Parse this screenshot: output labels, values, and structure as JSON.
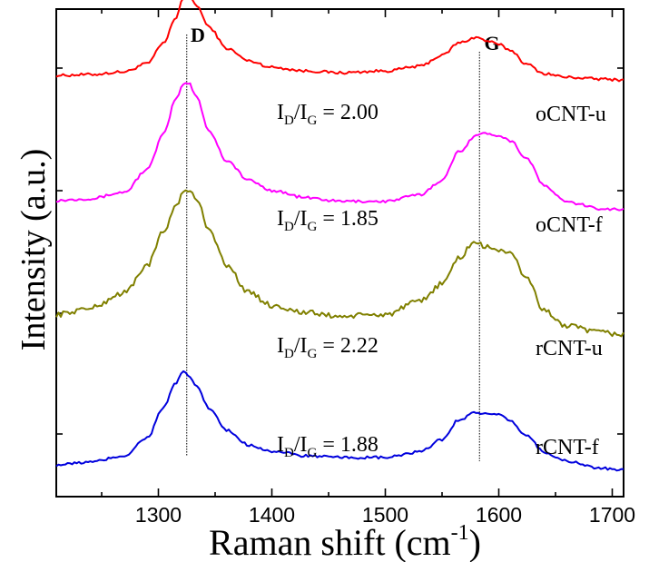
{
  "chart_data": {
    "type": "line",
    "xlabel": "Raman shift (cm-1)",
    "xlabel_main": "Raman shift (cm",
    "xlabel_sup": "-1",
    "xlabel_close": ")",
    "ylabel": "Intensity (a.u.)",
    "xlim": [
      1210,
      1710
    ],
    "ylim": [
      0,
      5
    ],
    "xticks": [
      1300,
      1400,
      1500,
      1600,
      1700
    ],
    "xtick_labels": [
      "1300",
      "1400",
      "1500",
      "1600",
      "1700"
    ],
    "yticks_unlabeled": true,
    "grid": false,
    "peak_markers": [
      {
        "label": "D",
        "x": 1325
      },
      {
        "label": "G",
        "x": 1583
      }
    ],
    "series": [
      {
        "name": "oCNT-u",
        "color": "#ff0000",
        "ratio": "2.00",
        "x": [
          1210,
          1240,
          1270,
          1290,
          1305,
          1315,
          1322,
          1327,
          1333,
          1345,
          1360,
          1380,
          1400,
          1430,
          1460,
          1500,
          1530,
          1550,
          1565,
          1580,
          1590,
          1600,
          1610,
          1625,
          1640,
          1660,
          1690,
          1710
        ],
        "y": [
          4.32,
          4.33,
          4.36,
          4.45,
          4.68,
          4.95,
          5.18,
          5.22,
          5.1,
          4.85,
          4.62,
          4.48,
          4.41,
          4.37,
          4.35,
          4.37,
          4.42,
          4.54,
          4.68,
          4.74,
          4.7,
          4.66,
          4.6,
          4.44,
          4.34,
          4.3,
          4.28,
          4.27
        ]
      },
      {
        "name": "oCNT-f",
        "color": "#ff00ff",
        "ratio": "1.85",
        "x": [
          1210,
          1240,
          1270,
          1290,
          1305,
          1315,
          1322,
          1327,
          1333,
          1345,
          1360,
          1380,
          1400,
          1430,
          1460,
          1500,
          1530,
          1550,
          1565,
          1580,
          1590,
          1600,
          1610,
          1625,
          1640,
          1660,
          1690,
          1710
        ],
        "y": [
          2.94,
          2.96,
          3.03,
          3.28,
          3.68,
          4.05,
          4.22,
          4.24,
          4.1,
          3.7,
          3.38,
          3.16,
          3.05,
          2.97,
          2.93,
          2.93,
          3.0,
          3.16,
          3.48,
          3.66,
          3.68,
          3.66,
          3.6,
          3.4,
          3.1,
          2.92,
          2.85,
          2.84
        ]
      },
      {
        "name": "rCNT-u",
        "color": "#808000",
        "ratio": "2.22",
        "x": [
          1210,
          1240,
          1270,
          1290,
          1305,
          1315,
          1322,
          1327,
          1333,
          1345,
          1360,
          1380,
          1400,
          1430,
          1460,
          1500,
          1530,
          1550,
          1565,
          1578,
          1590,
          1600,
          1610,
          1625,
          1640,
          1660,
          1690,
          1710
        ],
        "y": [
          1.68,
          1.75,
          1.92,
          2.22,
          2.6,
          2.88,
          3.02,
          3.05,
          2.96,
          2.62,
          2.22,
          1.92,
          1.78,
          1.7,
          1.66,
          1.68,
          1.82,
          2.02,
          2.3,
          2.48,
          2.42,
          2.4,
          2.35,
          2.08,
          1.72,
          1.55,
          1.48,
          1.46
        ]
      },
      {
        "name": "rCNT-f",
        "color": "#0000dd",
        "ratio": "1.88",
        "x": [
          1210,
          1240,
          1270,
          1290,
          1305,
          1315,
          1322,
          1327,
          1333,
          1345,
          1360,
          1380,
          1400,
          1430,
          1460,
          1500,
          1530,
          1550,
          1565,
          1580,
          1590,
          1600,
          1610,
          1625,
          1640,
          1660,
          1690,
          1710
        ],
        "y": [
          0.02,
          0.05,
          0.12,
          0.32,
          0.66,
          0.92,
          1.04,
          1.0,
          0.9,
          0.64,
          0.4,
          0.24,
          0.17,
          0.12,
          0.1,
          0.1,
          0.16,
          0.3,
          0.52,
          0.6,
          0.58,
          0.57,
          0.5,
          0.34,
          0.16,
          0.06,
          -0.02,
          -0.04
        ]
      }
    ]
  }
}
